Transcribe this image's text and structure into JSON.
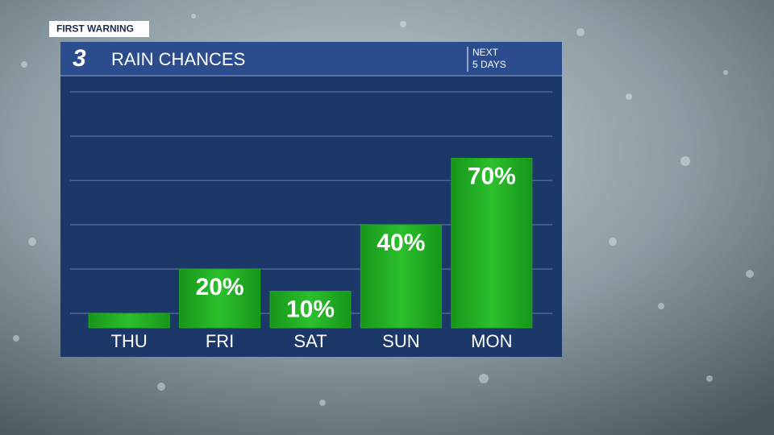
{
  "badge": "FIRST WARNING",
  "logo": "3",
  "chart_data": {
    "type": "bar",
    "title": "RAIN CHANCES",
    "subtitle_lines": [
      "NEXT",
      "5 DAYS"
    ],
    "categories": [
      "THU",
      "FRI",
      "SAT",
      "SUN",
      "MON"
    ],
    "values": [
      0,
      20,
      10,
      40,
      70
    ],
    "value_labels": [
      null,
      "20%",
      "10%",
      "40%",
      "70%"
    ],
    "color": "#1fa81f",
    "ylim": [
      0,
      100
    ],
    "yticks": [
      0,
      20,
      40,
      60,
      80,
      100
    ],
    "grid": true
  }
}
